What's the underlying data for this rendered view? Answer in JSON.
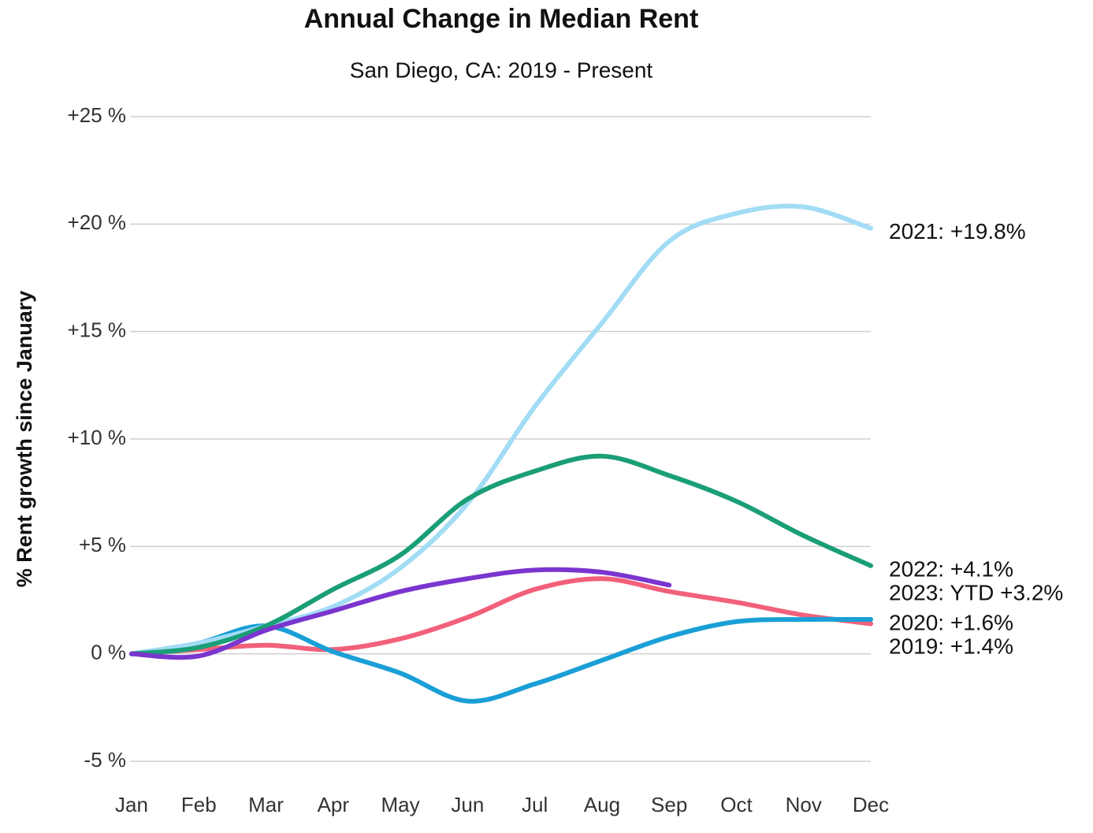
{
  "chart_data": {
    "type": "line",
    "title": "Annual Change in Median Rent",
    "subtitle": "San Diego, CA: 2019 - Present",
    "y_label": "% Rent growth since January",
    "categories": [
      "Jan",
      "Feb",
      "Mar",
      "Apr",
      "May",
      "Jun",
      "Jul",
      "Aug",
      "Sep",
      "Oct",
      "Nov",
      "Dec"
    ],
    "ylim": [
      -5,
      25
    ],
    "yticks": [
      {
        "value": -5,
        "label": "-5 %"
      },
      {
        "value": 0,
        "label": "0 %"
      },
      {
        "value": 5,
        "label": "+5 %"
      },
      {
        "value": 10,
        "label": "+10 %"
      },
      {
        "value": 15,
        "label": "+15 %"
      },
      {
        "value": 20,
        "label": "+20 %"
      },
      {
        "value": 25,
        "label": "+25 %"
      }
    ],
    "grid": true,
    "series": [
      {
        "name": "2019: +1.4%",
        "color": "#f2607a",
        "values": [
          0,
          0.2,
          0.4,
          0.2,
          0.7,
          1.7,
          3.0,
          3.5,
          2.9,
          2.4,
          1.8,
          1.4
        ]
      },
      {
        "name": "2020: +1.6%",
        "color": "#1a9fd6",
        "values": [
          0,
          0.5,
          1.3,
          0.1,
          -0.9,
          -2.2,
          -1.4,
          -0.3,
          0.8,
          1.5,
          1.6,
          1.6
        ]
      },
      {
        "name": "2021: +19.8%",
        "color": "#a2dcf5",
        "values": [
          0,
          0.5,
          1.3,
          2.2,
          4.0,
          7.0,
          11.5,
          15.4,
          19.2,
          20.5,
          20.8,
          19.8
        ]
      },
      {
        "name": "2022: +4.1%",
        "color": "#1a9e77",
        "values": [
          0,
          0.3,
          1.3,
          3.0,
          4.6,
          7.2,
          8.5,
          9.2,
          8.3,
          7.1,
          5.5,
          4.1
        ]
      },
      {
        "name": "2023: YTD +3.2%",
        "color": "#7b35cf",
        "values": [
          0,
          -0.1,
          1.1,
          2.0,
          2.9,
          3.5,
          3.9,
          3.8,
          3.2,
          null,
          null,
          null
        ]
      }
    ]
  }
}
